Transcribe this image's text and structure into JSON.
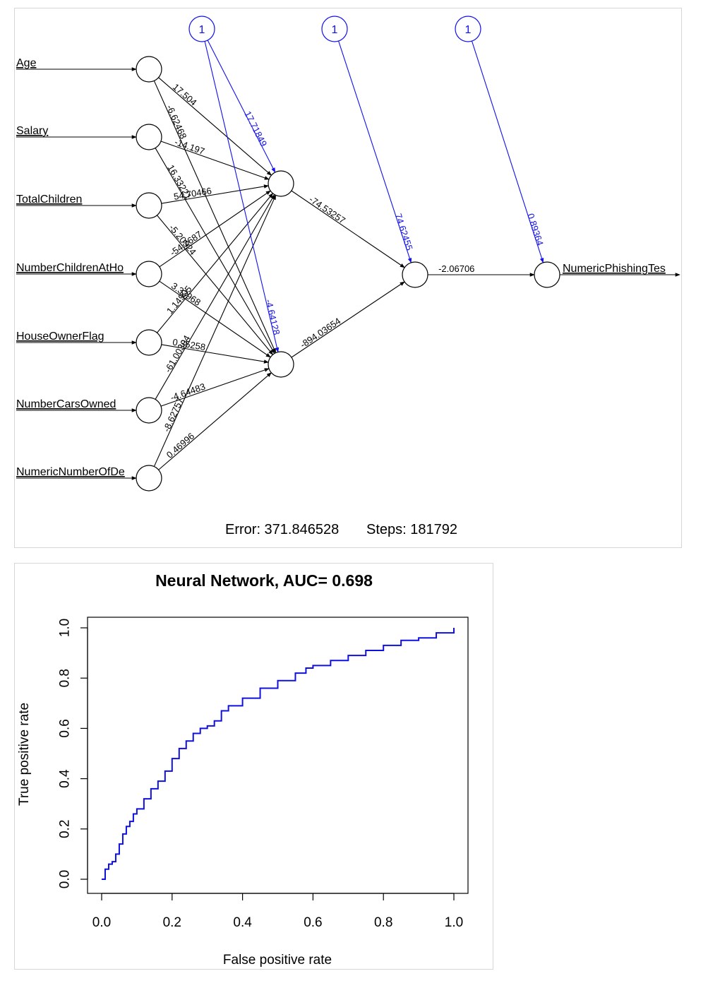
{
  "network": {
    "inputs": [
      "Age",
      "Salary",
      "TotalChildren",
      "NumberChildrenAtHo",
      "HouseOwnerFlag",
      "NumberCarsOwned",
      "NumericNumberOfDe"
    ],
    "output_label": "NumericPhishingTes",
    "bias_label": "1",
    "weights_input_to_h1": [
      "17.504",
      "-14.197",
      "54.70466",
      "-54.2687",
      "1.14905",
      "-61.00304",
      "-8.62757"
    ],
    "weights_input_to_h2": [
      "-6.62468",
      "16.33221",
      "-5.20924",
      "3.33968",
      "0.35258",
      "-4.64483",
      "0.46996"
    ],
    "bias_weights": {
      "h1": "17.71849",
      "h2": "-4.64128",
      "o1": "74.62455",
      "out": "0.89364"
    },
    "weight_h1_o1": "-74.53257",
    "weight_h2_o1": "-894.03654",
    "weight_o1_out": "-2.06706",
    "footer": {
      "error": "Error: 371.846528",
      "steps": "Steps: 181792"
    },
    "colors": {
      "edge": "#000000",
      "bias_edge": "#1010ee"
    }
  },
  "roc": {
    "title": "Neural Network, AUC= 0.698",
    "xlabel": "False positive rate",
    "ylabel": "True positive rate",
    "color": "#1010dd"
  },
  "chart_data": {
    "type": "line",
    "title": "Neural Network, AUC= 0.698",
    "xlabel": "False positive rate",
    "ylabel": "True positive rate",
    "xlim": [
      0,
      1
    ],
    "ylim": [
      0,
      1
    ],
    "xticks": [
      "0.0",
      "0.2",
      "0.4",
      "0.6",
      "0.8",
      "1.0"
    ],
    "yticks": [
      "0.0",
      "0.2",
      "0.4",
      "0.6",
      "0.8",
      "1.0"
    ],
    "grid": false,
    "x": [
      0,
      0.01,
      0.02,
      0.03,
      0.04,
      0.05,
      0.06,
      0.07,
      0.08,
      0.09,
      0.1,
      0.12,
      0.14,
      0.16,
      0.18,
      0.2,
      0.22,
      0.24,
      0.26,
      0.28,
      0.3,
      0.32,
      0.34,
      0.36,
      0.4,
      0.45,
      0.5,
      0.55,
      0.58,
      0.6,
      0.65,
      0.7,
      0.75,
      0.8,
      0.85,
      0.9,
      0.95,
      1.0
    ],
    "y": [
      0,
      0.04,
      0.06,
      0.07,
      0.1,
      0.14,
      0.18,
      0.21,
      0.23,
      0.26,
      0.28,
      0.32,
      0.36,
      0.39,
      0.43,
      0.48,
      0.52,
      0.55,
      0.58,
      0.6,
      0.61,
      0.63,
      0.67,
      0.69,
      0.72,
      0.76,
      0.79,
      0.82,
      0.84,
      0.85,
      0.87,
      0.89,
      0.91,
      0.93,
      0.95,
      0.96,
      0.98,
      1.0
    ]
  }
}
